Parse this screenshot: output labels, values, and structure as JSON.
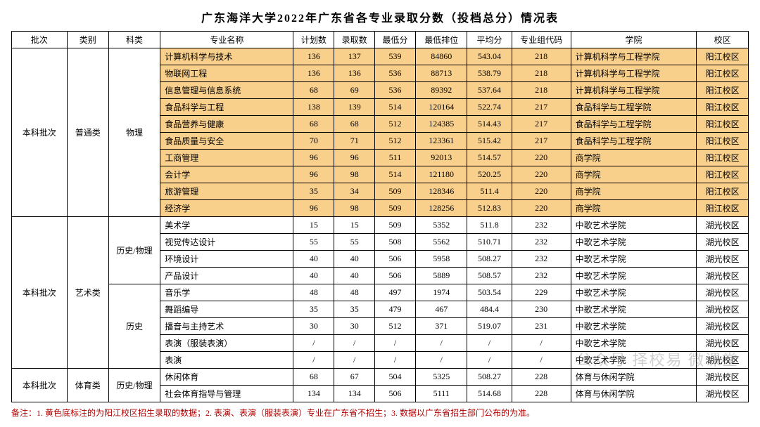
{
  "title": "广东海洋大学2022年广东省各专业录取分数（投档总分）情况表",
  "columns": [
    "批次",
    "类别",
    "科类",
    "专业名称",
    "计划数",
    "录取数",
    "最低分",
    "最低排位",
    "平均分",
    "专业组代码",
    "学院",
    "校区"
  ],
  "note": "备注：1. 黄色底标注的为阳江校区招生录取的数据；2. 表演、表演（服装表演）专业在广东省不招生；3. 数据以广东省招生部门公布的为准。",
  "watermark": "公众号 择校易 微课堂",
  "highlight_color": "#f9cf8c",
  "groups": [
    {
      "batch": "本科批次",
      "category": "普通类",
      "subgroups": [
        {
          "subject": "物理",
          "rows": [
            {
              "hl": true,
              "major": "计算机科学与技术",
              "plan": "136",
              "enroll": "137",
              "min": "539",
              "rank": "84860",
              "avg": "543.04",
              "code": "218",
              "college": "计算机科学与工程学院",
              "campus": "阳江校区"
            },
            {
              "hl": true,
              "major": "物联网工程",
              "plan": "136",
              "enroll": "136",
              "min": "536",
              "rank": "88713",
              "avg": "538.79",
              "code": "218",
              "college": "计算机科学与工程学院",
              "campus": "阳江校区"
            },
            {
              "hl": true,
              "major": "信息管理与信息系统",
              "plan": "68",
              "enroll": "69",
              "min": "536",
              "rank": "89392",
              "avg": "537.64",
              "code": "218",
              "college": "计算机科学与工程学院",
              "campus": "阳江校区"
            },
            {
              "hl": true,
              "major": "食品科学与工程",
              "plan": "138",
              "enroll": "139",
              "min": "514",
              "rank": "120164",
              "avg": "522.74",
              "code": "217",
              "college": "食品科学与工程学院",
              "campus": "阳江校区"
            },
            {
              "hl": true,
              "major": "食品营养与健康",
              "plan": "68",
              "enroll": "68",
              "min": "512",
              "rank": "124385",
              "avg": "514.43",
              "code": "217",
              "college": "食品科学与工程学院",
              "campus": "阳江校区"
            },
            {
              "hl": true,
              "major": "食品质量与安全",
              "plan": "70",
              "enroll": "71",
              "min": "512",
              "rank": "123361",
              "avg": "515.42",
              "code": "217",
              "college": "食品科学与工程学院",
              "campus": "阳江校区"
            },
            {
              "hl": true,
              "major": "工商管理",
              "plan": "96",
              "enroll": "96",
              "min": "511",
              "rank": "92013",
              "avg": "514.57",
              "code": "220",
              "college": "商学院",
              "campus": "阳江校区"
            },
            {
              "hl": true,
              "major": "会计学",
              "plan": "96",
              "enroll": "98",
              "min": "514",
              "rank": "121180",
              "avg": "520.25",
              "code": "220",
              "college": "商学院",
              "campus": "阳江校区"
            },
            {
              "hl": true,
              "major": "旅游管理",
              "plan": "35",
              "enroll": "34",
              "min": "509",
              "rank": "128346",
              "avg": "511.4",
              "code": "220",
              "college": "商学院",
              "campus": "阳江校区"
            },
            {
              "hl": true,
              "major": "经济学",
              "plan": "96",
              "enroll": "98",
              "min": "509",
              "rank": "128256",
              "avg": "512.83",
              "code": "220",
              "college": "商学院",
              "campus": "阳江校区"
            }
          ]
        }
      ]
    },
    {
      "batch": "本科批次",
      "category": "艺术类",
      "subgroups": [
        {
          "subject": "历史/物理",
          "rows": [
            {
              "hl": false,
              "major": "美术学",
              "plan": "15",
              "enroll": "15",
              "min": "509",
              "rank": "5352",
              "avg": "511.8",
              "code": "232",
              "college": "中歌艺术学院",
              "campus": "湖光校区"
            },
            {
              "hl": false,
              "major": "视觉传达设计",
              "plan": "55",
              "enroll": "55",
              "min": "508",
              "rank": "5562",
              "avg": "510.71",
              "code": "232",
              "college": "中歌艺术学院",
              "campus": "湖光校区"
            },
            {
              "hl": false,
              "major": "环境设计",
              "plan": "40",
              "enroll": "40",
              "min": "506",
              "rank": "5958",
              "avg": "508.27",
              "code": "232",
              "college": "中歌艺术学院",
              "campus": "湖光校区"
            },
            {
              "hl": false,
              "major": "产品设计",
              "plan": "40",
              "enroll": "40",
              "min": "506",
              "rank": "5889",
              "avg": "508.57",
              "code": "232",
              "college": "中歌艺术学院",
              "campus": "湖光校区"
            }
          ]
        },
        {
          "subject": "历史",
          "rows": [
            {
              "hl": false,
              "major": "音乐学",
              "plan": "48",
              "enroll": "48",
              "min": "497",
              "rank": "1974",
              "avg": "503.54",
              "code": "229",
              "college": "中歌艺术学院",
              "campus": "湖光校区"
            },
            {
              "hl": false,
              "major": "舞蹈编导",
              "plan": "35",
              "enroll": "35",
              "min": "479",
              "rank": "467",
              "avg": "484.4",
              "code": "230",
              "college": "中歌艺术学院",
              "campus": "湖光校区"
            },
            {
              "hl": false,
              "major": "播音与主持艺术",
              "plan": "30",
              "enroll": "30",
              "min": "512",
              "rank": "371",
              "avg": "519.07",
              "code": "231",
              "college": "中歌艺术学院",
              "campus": "湖光校区"
            },
            {
              "hl": false,
              "major": "表演（服装表演）",
              "plan": "/",
              "enroll": "/",
              "min": "/",
              "rank": "/",
              "avg": "/",
              "code": "/",
              "college": "中歌艺术学院",
              "campus": "湖光校区"
            },
            {
              "hl": false,
              "major": "表演",
              "plan": "/",
              "enroll": "/",
              "min": "/",
              "rank": "/",
              "avg": "/",
              "code": "/",
              "college": "中歌艺术学院",
              "campus": "湖光校区"
            }
          ]
        }
      ]
    },
    {
      "batch": "本科批次",
      "category": "体育类",
      "subgroups": [
        {
          "subject": "历史/物理",
          "rows": [
            {
              "hl": false,
              "major": "休闲体育",
              "plan": "68",
              "enroll": "67",
              "min": "504",
              "rank": "5325",
              "avg": "508.27",
              "code": "228",
              "college": "体育与休闲学院",
              "campus": "湖光校区"
            },
            {
              "hl": false,
              "major": "社会体育指导与管理",
              "plan": "134",
              "enroll": "134",
              "min": "506",
              "rank": "5111",
              "avg": "514.68",
              "code": "228",
              "college": "体育与休闲学院",
              "campus": "湖光校区"
            }
          ]
        }
      ]
    }
  ]
}
